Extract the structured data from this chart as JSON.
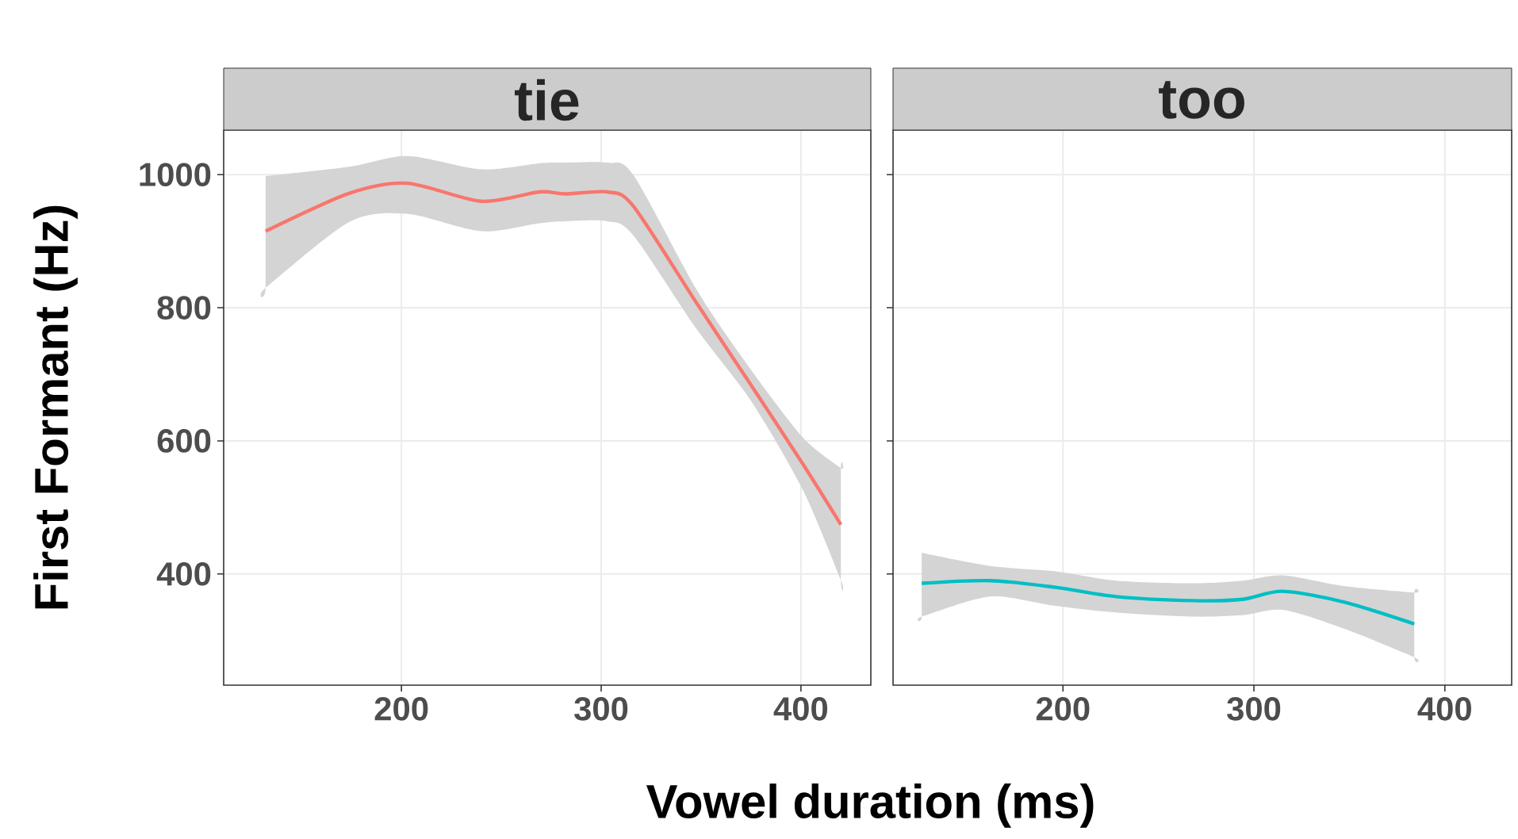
{
  "chart_data": [
    {
      "type": "line",
      "title": "tie",
      "xlabel": "Vowel duration (ms)",
      "ylabel": "First Formant (Hz)",
      "xlim": [
        111,
        435
      ],
      "ylim": [
        233,
        1067
      ],
      "xticks": [
        200,
        300,
        400
      ],
      "yticks": [
        400,
        600,
        800,
        1000
      ],
      "grid": true,
      "series": [
        {
          "color": "#f8766d",
          "x": [
            132,
            174,
            203,
            240,
            269,
            282,
            303,
            316,
            348,
            375,
            401,
            420
          ],
          "values": [
            915,
            972,
            987,
            960,
            974,
            971,
            974,
            953,
            806,
            684,
            565,
            474
          ],
          "lower": [
            830,
            929,
            941,
            915,
            927,
            930,
            930,
            909,
            767,
            660,
            526,
            391
          ],
          "upper": [
            998,
            1012,
            1028,
            1008,
            1017,
            1018,
            1018,
            1000,
            826,
            707,
            605,
            559
          ]
        }
      ]
    },
    {
      "type": "line",
      "title": "too",
      "xlim": [
        111,
        435
      ],
      "ylim": [
        233,
        1067
      ],
      "xticks": [
        200,
        300,
        400
      ],
      "yticks": [
        400,
        600,
        800,
        1000
      ],
      "grid": true,
      "tick_labels": "x",
      "series": [
        {
          "color": "#00bfc4",
          "x": [
            126,
            162,
            196,
            228,
            268,
            294,
            315,
            347,
            384
          ],
          "values": [
            386,
            390,
            380,
            366,
            360,
            362,
            374,
            358,
            325
          ],
          "lower": [
            336,
            366,
            352,
            342,
            336,
            338,
            346,
            318,
            275
          ],
          "upper": [
            432,
            412,
            404,
            390,
            386,
            390,
            398,
            382,
            372
          ]
        }
      ]
    }
  ]
}
